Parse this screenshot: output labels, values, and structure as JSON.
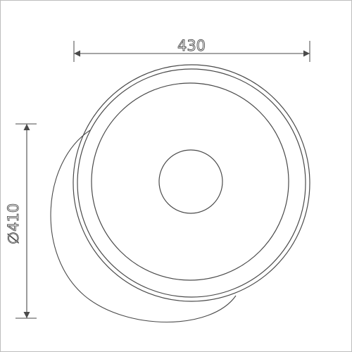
{
  "drawing": {
    "width_dimension": "430",
    "diameter_dimension": "∅410",
    "colors": {
      "line": "#4a4a4a",
      "frame": "#bdbdbd",
      "background": "#ffffff"
    },
    "icons": {
      "arrow": "filled-triangle-arrowhead",
      "diameter_symbol": "diameter-symbol"
    }
  }
}
